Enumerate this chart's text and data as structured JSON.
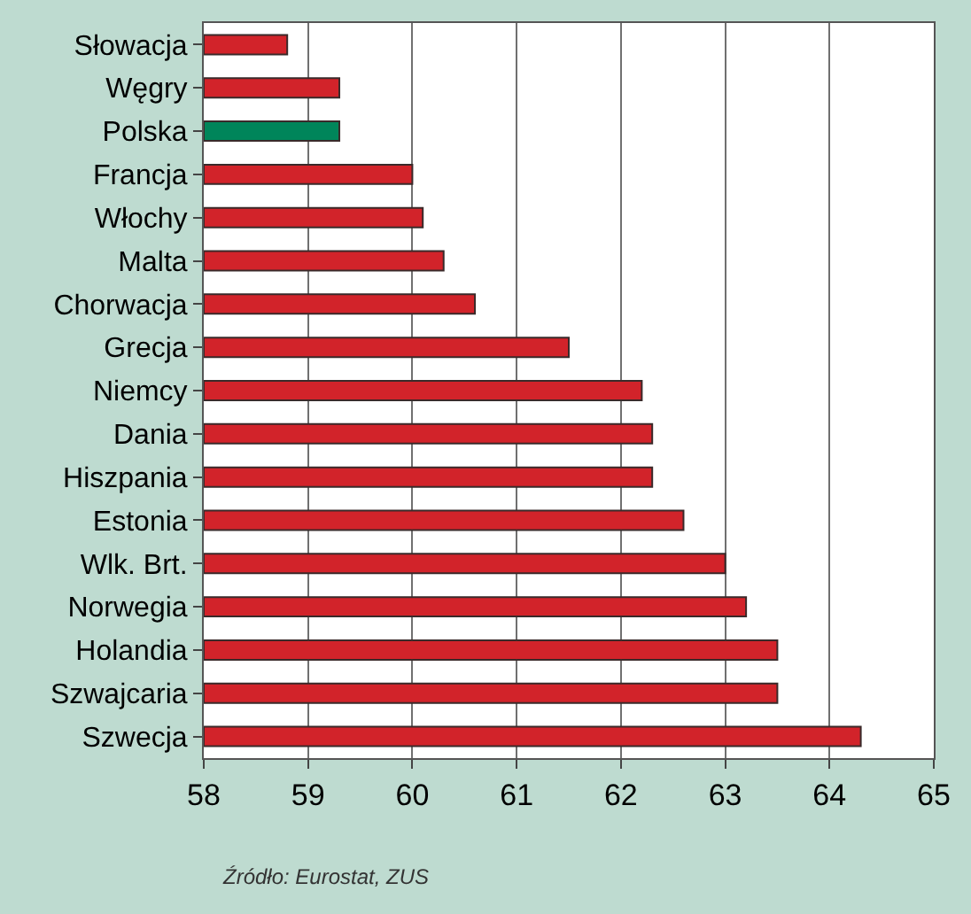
{
  "chart_data": {
    "type": "bar",
    "orientation": "horizontal",
    "categories": [
      "Słowacja",
      "Węgry",
      "Polska",
      "Francja",
      "Włochy",
      "Malta",
      "Chorwacja",
      "Grecja",
      "Niemcy",
      "Dania",
      "Hiszpania",
      "Estonia",
      "Wlk. Brt.",
      "Norwegia",
      "Holandia",
      "Szwajcaria",
      "Szwecja"
    ],
    "values": [
      58.8,
      59.3,
      59.3,
      60.0,
      60.1,
      60.3,
      60.6,
      61.5,
      62.2,
      62.3,
      62.3,
      62.6,
      63.0,
      63.2,
      63.5,
      63.5,
      64.3
    ],
    "colors": [
      "#d2232a",
      "#d2232a",
      "#00855a",
      "#d2232a",
      "#d2232a",
      "#d2232a",
      "#d2232a",
      "#d2232a",
      "#d2232a",
      "#d2232a",
      "#d2232a",
      "#d2232a",
      "#d2232a",
      "#d2232a",
      "#d2232a",
      "#d2232a",
      "#d2232a"
    ],
    "xlim": [
      58,
      65
    ],
    "xticks": [
      58,
      59,
      60,
      61,
      62,
      63,
      64,
      65
    ],
    "grid": "x",
    "annotations": [
      "Źródło: Eurostat, ZUS"
    ]
  }
}
